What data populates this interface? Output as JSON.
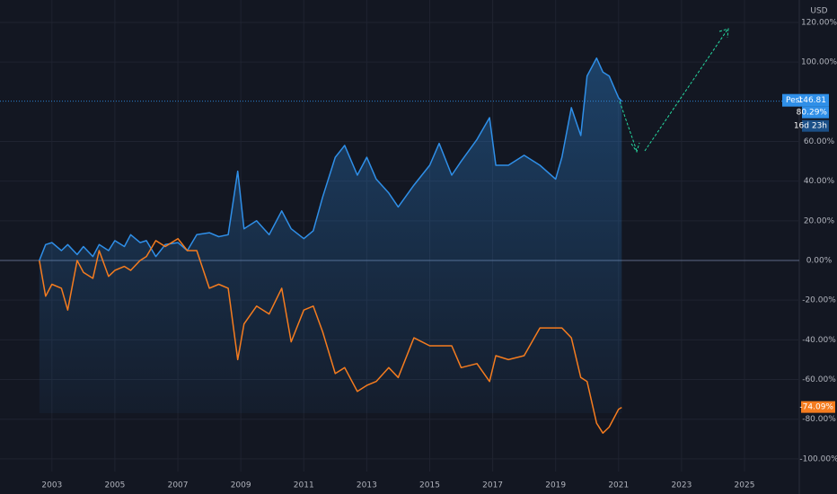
{
  "chart_data": {
    "type": "line",
    "currency": "USD",
    "x": [
      2002.6,
      2002.8,
      2003.0,
      2003.3,
      2003.5,
      2003.8,
      2004.0,
      2004.3,
      2004.5,
      2004.8,
      2005.0,
      2005.3,
      2005.5,
      2005.8,
      2006.0,
      2006.3,
      2006.6,
      2007.0,
      2007.3,
      2007.6,
      2008.0,
      2008.3,
      2008.6,
      2008.9,
      2009.1,
      2009.5,
      2009.9,
      2010.3,
      2010.6,
      2011.0,
      2011.3,
      2011.6,
      2012.0,
      2012.3,
      2012.7,
      2013.0,
      2013.3,
      2013.7,
      2014.0,
      2014.5,
      2015.0,
      2015.3,
      2015.7,
      2016.0,
      2016.5,
      2016.9,
      2017.1,
      2017.5,
      2018.0,
      2018.5,
      2019.0,
      2019.2,
      2019.5,
      2019.8,
      2020.0,
      2020.3,
      2020.5,
      2020.7,
      2021.0,
      2021.1
    ],
    "series": [
      {
        "color": "#2f8fe8",
        "last_label": "80.29%",
        "values": [
          0,
          8,
          9,
          5,
          8,
          3,
          7,
          2,
          8,
          5,
          10,
          7,
          13,
          9,
          10,
          2,
          8,
          9,
          5,
          13,
          14,
          12,
          13,
          45,
          16,
          20,
          13,
          25,
          16,
          11,
          15,
          32,
          52,
          58,
          43,
          52,
          41,
          34,
          27,
          38,
          48,
          59,
          43,
          50,
          61,
          72,
          48,
          48,
          53,
          48,
          41,
          52,
          77,
          63,
          93,
          102,
          95,
          93,
          82,
          80.29
        ]
      },
      {
        "color": "#f57c1f",
        "last_label": "-74.09%",
        "values": [
          0,
          -18,
          -12,
          -14,
          -25,
          0,
          -6,
          -9,
          5,
          -8,
          -5,
          -3,
          -5,
          0,
          2,
          10,
          7,
          11,
          5,
          5,
          -14,
          -12,
          -14,
          -50,
          -32,
          -23,
          -27,
          -14,
          -41,
          -25,
          -23,
          -36,
          -57,
          -54,
          -66,
          -63,
          -61,
          -54,
          -59,
          -39,
          -43,
          -43,
          -43,
          -54,
          -52,
          -61,
          -48,
          -50,
          -48,
          -34,
          -34,
          -34,
          -39,
          -59,
          -61,
          -82,
          -87,
          -84,
          -75,
          -74.09
        ]
      }
    ],
    "price_label": {
      "name": "Pest",
      "price": 146.81,
      "countdown": "16d 23h"
    },
    "xlim": [
      2001.35,
      2026.74
    ],
    "xticks": [
      2003,
      2005,
      2007,
      2009,
      2011,
      2013,
      2015,
      2017,
      2019,
      2021,
      2023,
      2025
    ],
    "ylim": [
      -106.4,
      131.3
    ],
    "yticks": [
      {
        "value": 120,
        "label": "120.00%"
      },
      {
        "value": 100,
        "label": "100.00%"
      },
      {
        "value": 60,
        "label": "60.00%"
      },
      {
        "value": 40,
        "label": "40.00%"
      },
      {
        "value": 20,
        "label": "20.00%"
      },
      {
        "value": 0,
        "label": "0.00%"
      },
      {
        "value": -20,
        "label": "-20.00%"
      },
      {
        "value": -40,
        "label": "-40.00%"
      },
      {
        "value": -60,
        "label": "-60.00%"
      },
      {
        "value": -80,
        "label": "-80.00%"
      },
      {
        "value": -100,
        "label": "-100.00%"
      }
    ],
    "grid": true
  }
}
